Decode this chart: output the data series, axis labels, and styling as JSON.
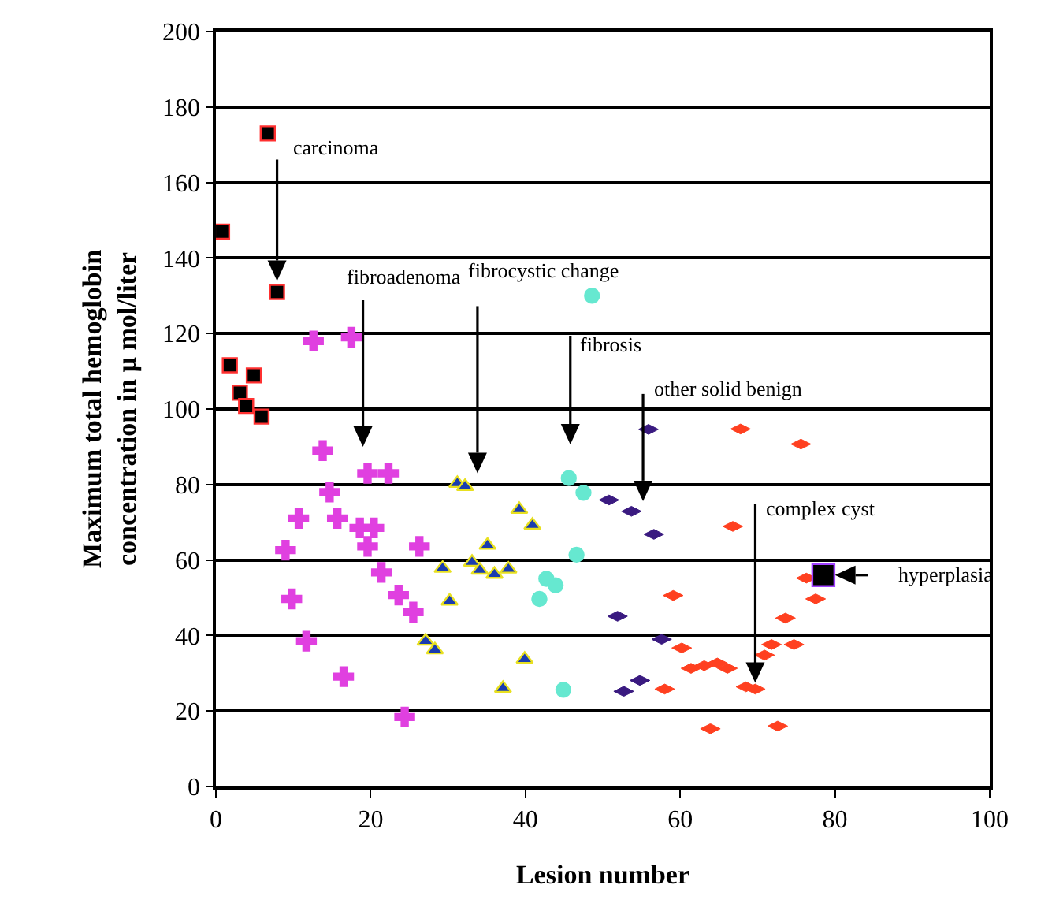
{
  "chart_data": {
    "type": "scatter",
    "xlabel": "Lesion number",
    "ylabel": "Maximum total hemoglobin\nconcentration in µ mol/liter",
    "xlim": [
      0,
      100
    ],
    "xticks": [
      0,
      20,
      40,
      60,
      80,
      100
    ],
    "ylim": [
      0,
      200
    ],
    "yticks": [
      0,
      20,
      40,
      60,
      80,
      100,
      120,
      140,
      160,
      180,
      200
    ],
    "grid": "y",
    "series": [
      {
        "color": "#000000",
        "marker": "square",
        "x": [
          0.8,
          1.8,
          3.1,
          3.9,
          4.9,
          5.9,
          6.7,
          7.9
        ],
        "values": [
          147,
          111.6,
          104.3,
          100.8,
          108.9,
          98,
          173,
          131
        ]
      },
      {
        "color": "#e040e0",
        "marker": "cross",
        "x": [
          9,
          9.8,
          10.7,
          11.7,
          12.6,
          13.8,
          14.7,
          15.7,
          16.5,
          17.5,
          18.6,
          19.6,
          19.6,
          20.4,
          21.4,
          22.3,
          23.6,
          24.4,
          25.5,
          26.3
        ],
        "values": [
          62.6,
          49.7,
          71,
          38.5,
          118,
          89,
          78,
          71,
          29.1,
          119,
          68.5,
          83,
          63.6,
          68.5,
          56.7,
          83,
          50.7,
          18.4,
          46.2,
          63.6
        ]
      },
      {
        "color": "#1a3cb0",
        "marker": "triangle",
        "x": [
          27.1,
          28.3,
          29.3,
          30.2,
          31.2,
          32.2,
          33.1,
          34.1,
          35.1,
          36,
          37.1,
          37.8,
          39.2,
          39.9,
          40.9
        ],
        "values": [
          38.5,
          36.2,
          57.8,
          49.1,
          80.3,
          79.5,
          59.4,
          57.3,
          63.9,
          56.2,
          26,
          57.6,
          73.4,
          33.7,
          69.2
        ]
      },
      {
        "color": "#66e8d0",
        "marker": "circle",
        "x": [
          41.8,
          42.7,
          43.9,
          44.9,
          45.6,
          46.6,
          47.5,
          48.6
        ],
        "values": [
          49.7,
          55,
          53.3,
          25.6,
          81.7,
          61.4,
          77.8,
          130
        ]
      },
      {
        "color": "#3a1a80",
        "marker": "diamond",
        "x": [
          50.8,
          51.9,
          52.7,
          53.7,
          54.8,
          55.9,
          56.6,
          57.6
        ],
        "values": [
          75.9,
          45.1,
          25.2,
          72.9,
          28.1,
          94.6,
          66.8,
          39
        ]
      },
      {
        "color": "#ff4020",
        "marker": "diamond",
        "x": [
          58,
          59.1,
          60.2,
          61.4,
          63.1,
          63.9,
          64.8,
          66.1,
          66.8,
          67.8,
          68.5,
          69.7,
          70.9,
          71.8,
          72.6,
          73.6,
          74.7,
          75.6,
          76.3,
          77.5
        ],
        "values": [
          25.8,
          50.6,
          36.7,
          31.3,
          32,
          15.3,
          32.7,
          31.3,
          68.9,
          94.7,
          26.4,
          25.8,
          34.8,
          37.6,
          16,
          44.6,
          37.6,
          90.7,
          55.2,
          49.7
        ]
      },
      {
        "color": "#000000",
        "marker": "square",
        "x": [
          78.5
        ],
        "values": [
          56
        ]
      }
    ],
    "annotations": [
      "carcinoma",
      "fibroadenoma",
      "fibrocystic change",
      "fibrosis",
      "other solid benign",
      {
        "text": "complex cyst",
        "x": 69.7,
        "y": 25.8
      },
      "hyperplasia"
    ]
  }
}
